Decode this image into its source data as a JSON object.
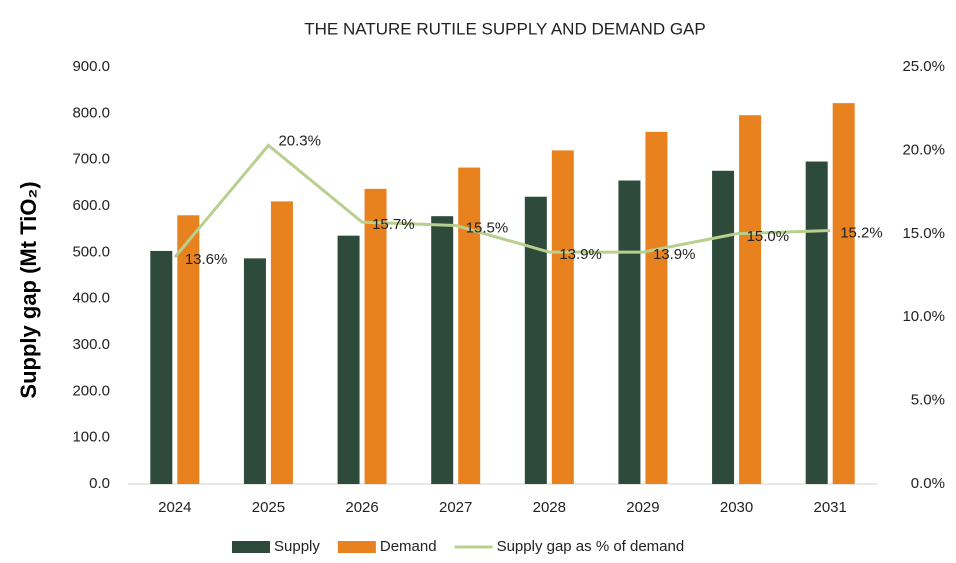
{
  "chart_data": {
    "type": "bar_line",
    "title": "THE NATURE RUTILE SUPPLY AND DEMAND GAP",
    "y_label": "Supply gap (Mt TiO₂)",
    "categories": [
      "2024",
      "2025",
      "2026",
      "2027",
      "2028",
      "2029",
      "2030",
      "2031"
    ],
    "series": [
      {
        "name": "Supply",
        "color": "#2e4a3a",
        "values": [
          503,
          487,
          536,
          578,
          620,
          655,
          676,
          696
        ]
      },
      {
        "name": "Demand",
        "color": "#e8821e",
        "values": [
          580,
          610,
          637,
          683,
          720,
          760,
          796,
          822
        ]
      },
      {
        "name": "Supply gap as % of demand",
        "color": "#b8cf8e",
        "axis": "y2",
        "values": [
          13.6,
          20.3,
          15.7,
          15.5,
          13.9,
          13.9,
          15.0,
          15.2
        ],
        "value_labels": [
          "13.6%",
          "20.3%",
          "15.7%",
          "15.5%",
          "13.9%",
          "13.9%",
          "15.0%",
          "15.2%"
        ]
      }
    ],
    "ylim": [
      0,
      900
    ],
    "yticks": [
      {
        "value": 0,
        "label": "0.0"
      },
      {
        "value": 100,
        "label": "100.0"
      },
      {
        "value": 200,
        "label": "200.0"
      },
      {
        "value": 300,
        "label": "300.0"
      },
      {
        "value": 400,
        "label": "400.0"
      },
      {
        "value": 500,
        "label": "500.0"
      },
      {
        "value": 600,
        "label": "600.0"
      },
      {
        "value": 700,
        "label": "700.0"
      },
      {
        "value": 800,
        "label": "800.0"
      },
      {
        "value": 900,
        "label": "900.0"
      }
    ],
    "y2lim": [
      0,
      25
    ],
    "y2ticks": [
      {
        "value": 0,
        "label": "0.0%"
      },
      {
        "value": 5,
        "label": "5.0%"
      },
      {
        "value": 10,
        "label": "10.0%"
      },
      {
        "value": 15,
        "label": "15.0%"
      },
      {
        "value": 20,
        "label": "20.0%"
      },
      {
        "value": 25,
        "label": "25.0%"
      }
    ],
    "grid": false
  }
}
